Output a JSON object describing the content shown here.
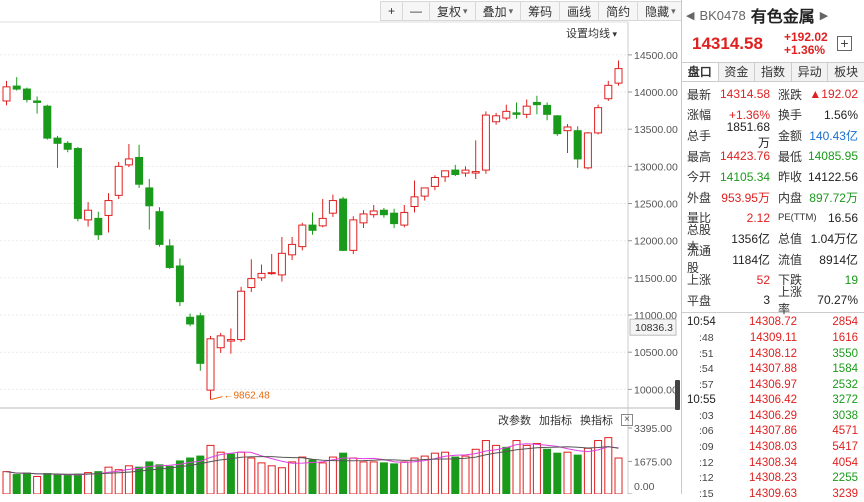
{
  "toolbar": {
    "plus": "+",
    "minus": "—",
    "fuquan": "复权",
    "diejia": "叠加",
    "chouma": "筹码",
    "huaxian": "画线",
    "jianyue": "简约",
    "yincang": "隐藏",
    "more": "⏩"
  },
  "ma_setting": "设置均线",
  "indicator": {
    "change_params": "改参数",
    "add_indicator": "加指标",
    "switch_indicator": "换指标",
    "close": "×"
  },
  "chart_data": {
    "type": "candlestick",
    "y_axis_ticks": [
      14500,
      14000,
      13500,
      13000,
      12500,
      12000,
      11500,
      11000,
      10500,
      10000
    ],
    "y_axis_labels": [
      "14500.00",
      "14000.00",
      "13500.00",
      "13000.00",
      "12500.00",
      "12000.00",
      "11500.00",
      "11000.00",
      "10500.00",
      "10000.00"
    ],
    "ylim": [
      9830,
      14700
    ],
    "cursor_price": "10836.3",
    "low_annotation": "9862.48",
    "candles": [
      {
        "o": 13880,
        "h": 14150,
        "l": 13820,
        "c": 14070
      },
      {
        "o": 14080,
        "h": 14200,
        "l": 14020,
        "c": 14040
      },
      {
        "o": 14040,
        "h": 14060,
        "l": 13860,
        "c": 13900
      },
      {
        "o": 13880,
        "h": 13940,
        "l": 13710,
        "c": 13860
      },
      {
        "o": 13810,
        "h": 13830,
        "l": 13360,
        "c": 13380
      },
      {
        "o": 13380,
        "h": 13410,
        "l": 12980,
        "c": 13310
      },
      {
        "o": 13310,
        "h": 13340,
        "l": 13190,
        "c": 13230
      },
      {
        "o": 13240,
        "h": 13260,
        "l": 12260,
        "c": 12300
      },
      {
        "o": 12280,
        "h": 12520,
        "l": 12190,
        "c": 12410
      },
      {
        "o": 12300,
        "h": 12390,
        "l": 12010,
        "c": 12080
      },
      {
        "o": 12340,
        "h": 12640,
        "l": 12110,
        "c": 12540
      },
      {
        "o": 12610,
        "h": 13060,
        "l": 12560,
        "c": 13000
      },
      {
        "o": 13020,
        "h": 13300,
        "l": 12990,
        "c": 13100
      },
      {
        "o": 13120,
        "h": 13290,
        "l": 12710,
        "c": 12760
      },
      {
        "o": 12710,
        "h": 12830,
        "l": 12150,
        "c": 12470
      },
      {
        "o": 12390,
        "h": 12450,
        "l": 11920,
        "c": 11950
      },
      {
        "o": 11930,
        "h": 12020,
        "l": 11620,
        "c": 11640
      },
      {
        "o": 11660,
        "h": 11760,
        "l": 11120,
        "c": 11180
      },
      {
        "o": 10970,
        "h": 11020,
        "l": 10850,
        "c": 10880
      },
      {
        "o": 10990,
        "h": 11030,
        "l": 10250,
        "c": 10350
      },
      {
        "o": 9990,
        "h": 10720,
        "l": 9862,
        "c": 10680
      },
      {
        "o": 10560,
        "h": 10760,
        "l": 10490,
        "c": 10720
      },
      {
        "o": 10650,
        "h": 10820,
        "l": 10480,
        "c": 10670
      },
      {
        "o": 10670,
        "h": 11380,
        "l": 10640,
        "c": 11320
      },
      {
        "o": 11370,
        "h": 11750,
        "l": 11310,
        "c": 11490
      },
      {
        "o": 11500,
        "h": 11680,
        "l": 11460,
        "c": 11560
      },
      {
        "o": 11560,
        "h": 11820,
        "l": 11540,
        "c": 11570
      },
      {
        "o": 11540,
        "h": 12050,
        "l": 11450,
        "c": 11830
      },
      {
        "o": 11810,
        "h": 12050,
        "l": 11740,
        "c": 11950
      },
      {
        "o": 11920,
        "h": 12240,
        "l": 11870,
        "c": 12210
      },
      {
        "o": 12210,
        "h": 12380,
        "l": 12080,
        "c": 12140
      },
      {
        "o": 12200,
        "h": 12560,
        "l": 12180,
        "c": 12300
      },
      {
        "o": 12370,
        "h": 12620,
        "l": 12320,
        "c": 12540
      },
      {
        "o": 12560,
        "h": 12590,
        "l": 11860,
        "c": 11870
      },
      {
        "o": 11870,
        "h": 12330,
        "l": 11820,
        "c": 12280
      },
      {
        "o": 12240,
        "h": 12410,
        "l": 12170,
        "c": 12360
      },
      {
        "o": 12350,
        "h": 12480,
        "l": 12310,
        "c": 12400
      },
      {
        "o": 12410,
        "h": 12440,
        "l": 12310,
        "c": 12350
      },
      {
        "o": 12370,
        "h": 12430,
        "l": 12170,
        "c": 12230
      },
      {
        "o": 12210,
        "h": 12480,
        "l": 12180,
        "c": 12380
      },
      {
        "o": 12460,
        "h": 12810,
        "l": 12380,
        "c": 12590
      },
      {
        "o": 12600,
        "h": 12710,
        "l": 12540,
        "c": 12710
      },
      {
        "o": 12730,
        "h": 12880,
        "l": 12680,
        "c": 12850
      },
      {
        "o": 12860,
        "h": 12940,
        "l": 12790,
        "c": 12940
      },
      {
        "o": 12950,
        "h": 13020,
        "l": 12870,
        "c": 12890
      },
      {
        "o": 12910,
        "h": 13000,
        "l": 12860,
        "c": 12950
      },
      {
        "o": 12910,
        "h": 13350,
        "l": 12830,
        "c": 12930
      },
      {
        "o": 12950,
        "h": 13740,
        "l": 12900,
        "c": 13690
      },
      {
        "o": 13600,
        "h": 13720,
        "l": 13560,
        "c": 13680
      },
      {
        "o": 13650,
        "h": 13830,
        "l": 13620,
        "c": 13740
      },
      {
        "o": 13720,
        "h": 13860,
        "l": 13640,
        "c": 13700
      },
      {
        "o": 13700,
        "h": 13900,
        "l": 13650,
        "c": 13810
      },
      {
        "o": 13860,
        "h": 13950,
        "l": 13700,
        "c": 13830
      },
      {
        "o": 13820,
        "h": 13860,
        "l": 13620,
        "c": 13700
      },
      {
        "o": 13680,
        "h": 13690,
        "l": 13410,
        "c": 13440
      },
      {
        "o": 13480,
        "h": 13570,
        "l": 13180,
        "c": 13530
      },
      {
        "o": 13480,
        "h": 13540,
        "l": 12980,
        "c": 13100
      },
      {
        "o": 12980,
        "h": 13460,
        "l": 12960,
        "c": 13450
      },
      {
        "o": 13450,
        "h": 13830,
        "l": 13430,
        "c": 13790
      },
      {
        "o": 13910,
        "h": 14150,
        "l": 13880,
        "c": 14090
      },
      {
        "o": 14120,
        "h": 14424,
        "l": 14086,
        "c": 14315
      }
    ],
    "volume_axis_labels": [
      "3395.00",
      "1675.00",
      "0.00"
    ],
    "volume_ymax": 3395,
    "volumes": [
      {
        "v": 1150,
        "up": true
      },
      {
        "v": 1000,
        "up": false
      },
      {
        "v": 1080,
        "up": false
      },
      {
        "v": 900,
        "up": true
      },
      {
        "v": 1050,
        "up": false
      },
      {
        "v": 1000,
        "up": false
      },
      {
        "v": 950,
        "up": false
      },
      {
        "v": 1020,
        "up": false
      },
      {
        "v": 1100,
        "up": true
      },
      {
        "v": 1150,
        "up": false
      },
      {
        "v": 1380,
        "up": true
      },
      {
        "v": 1250,
        "up": true
      },
      {
        "v": 1450,
        "up": true
      },
      {
        "v": 1380,
        "up": false
      },
      {
        "v": 1650,
        "up": false
      },
      {
        "v": 1500,
        "up": false
      },
      {
        "v": 1420,
        "up": false
      },
      {
        "v": 1700,
        "up": false
      },
      {
        "v": 1850,
        "up": false
      },
      {
        "v": 1950,
        "up": false
      },
      {
        "v": 2500,
        "up": true
      },
      {
        "v": 2150,
        "up": true
      },
      {
        "v": 2050,
        "up": false
      },
      {
        "v": 2150,
        "up": true
      },
      {
        "v": 1850,
        "up": true
      },
      {
        "v": 1600,
        "up": true
      },
      {
        "v": 1450,
        "up": true
      },
      {
        "v": 1350,
        "up": true
      },
      {
        "v": 1650,
        "up": true
      },
      {
        "v": 1900,
        "up": true
      },
      {
        "v": 1750,
        "up": false
      },
      {
        "v": 1600,
        "up": true
      },
      {
        "v": 1900,
        "up": true
      },
      {
        "v": 2100,
        "up": false
      },
      {
        "v": 1850,
        "up": true
      },
      {
        "v": 1650,
        "up": true
      },
      {
        "v": 1650,
        "up": true
      },
      {
        "v": 1600,
        "up": false
      },
      {
        "v": 1550,
        "up": false
      },
      {
        "v": 1650,
        "up": true
      },
      {
        "v": 1850,
        "up": true
      },
      {
        "v": 1950,
        "up": true
      },
      {
        "v": 2100,
        "up": true
      },
      {
        "v": 2150,
        "up": true
      },
      {
        "v": 1900,
        "up": false
      },
      {
        "v": 1950,
        "up": true
      },
      {
        "v": 2300,
        "up": true
      },
      {
        "v": 2750,
        "up": true
      },
      {
        "v": 2500,
        "up": true
      },
      {
        "v": 2400,
        "up": false
      },
      {
        "v": 2750,
        "up": true
      },
      {
        "v": 2500,
        "up": true
      },
      {
        "v": 2600,
        "up": true
      },
      {
        "v": 2300,
        "up": false
      },
      {
        "v": 2100,
        "up": false
      },
      {
        "v": 2150,
        "up": true
      },
      {
        "v": 2000,
        "up": false
      },
      {
        "v": 2350,
        "up": true
      },
      {
        "v": 2750,
        "up": true
      },
      {
        "v": 2900,
        "up": true
      },
      {
        "v": 1850,
        "up": true
      }
    ],
    "colors": {
      "up": "#e02020",
      "down": "#1a9a1a",
      "ma1": "#e040e0",
      "ma2": "#555555",
      "annotation": "#e86a10"
    }
  },
  "sidebar": {
    "code": "BK0478",
    "name": "有色金属",
    "price": "14314.58",
    "change": "+192.02",
    "change_pct": "+1.36%",
    "add_btn": "+",
    "tabs": [
      "盘口",
      "资金",
      "指数",
      "异动",
      "板块"
    ],
    "stats": [
      {
        "l1": "最新",
        "v1": "14314.58",
        "c1": "red",
        "l2": "涨跌",
        "v2": "▲192.02",
        "c2": "red"
      },
      {
        "l1": "涨幅",
        "v1": "+1.36%",
        "c1": "red",
        "l2": "换手",
        "v2": "1.56%",
        "c2": "blk"
      },
      {
        "l1": "总手",
        "v1": "1851.68万",
        "c1": "blk",
        "l2": "金额",
        "v2": "140.43亿",
        "c2": "blu"
      },
      {
        "l1": "最高",
        "v1": "14423.76",
        "c1": "red",
        "l2": "最低",
        "v2": "14085.95",
        "c2": "grn"
      },
      {
        "l1": "今开",
        "v1": "14105.34",
        "c1": "grn",
        "l2": "昨收",
        "v2": "14122.56",
        "c2": "blk"
      },
      {
        "l1": "外盘",
        "v1": "953.95万",
        "c1": "red",
        "l2": "内盘",
        "v2": "897.72万",
        "c2": "grn"
      },
      {
        "l1": "量比",
        "v1": "2.12",
        "c1": "red",
        "l2": "PE(TTM)",
        "v2": "16.56",
        "c2": "blk"
      },
      {
        "l1": "总股本",
        "v1": "1356亿",
        "c1": "blk",
        "l2": "总值",
        "v2": "1.04万亿",
        "c2": "blk"
      },
      {
        "l1": "流通股",
        "v1": "1184亿",
        "c1": "blk",
        "l2": "流值",
        "v2": "8914亿",
        "c2": "blk"
      },
      {
        "l1": "上涨",
        "v1": "52",
        "c1": "red",
        "l2": "下跌",
        "v2": "19",
        "c2": "grn"
      },
      {
        "l1": "平盘",
        "v1": "3",
        "c1": "blk",
        "l2": "上涨率",
        "v2": "70.27%",
        "c2": "blk"
      }
    ],
    "ticks": [
      {
        "t": "10:54",
        "sub": false,
        "p": "14308.72",
        "q": "2854",
        "c": "red"
      },
      {
        "t": ":48",
        "sub": true,
        "p": "14309.11",
        "q": "1616",
        "c": "red"
      },
      {
        "t": ":51",
        "sub": true,
        "p": "14308.12",
        "q": "3550",
        "c": "grn"
      },
      {
        "t": ":54",
        "sub": true,
        "p": "14307.88",
        "q": "1584",
        "c": "grn"
      },
      {
        "t": ":57",
        "sub": true,
        "p": "14306.97",
        "q": "2532",
        "c": "grn"
      },
      {
        "t": "10:55",
        "sub": false,
        "p": "14306.42",
        "q": "3272",
        "c": "grn"
      },
      {
        "t": ":03",
        "sub": true,
        "p": "14306.29",
        "q": "3038",
        "c": "grn"
      },
      {
        "t": ":06",
        "sub": true,
        "p": "14307.86",
        "q": "4571",
        "c": "red"
      },
      {
        "t": ":09",
        "sub": true,
        "p": "14308.03",
        "q": "5417",
        "c": "red"
      },
      {
        "t": ":12",
        "sub": true,
        "p": "14308.34",
        "q": "4054",
        "c": "red"
      },
      {
        "t": ":12",
        "sub": true,
        "p": "14308.23",
        "q": "2255",
        "c": "grn"
      },
      {
        "t": ":15",
        "sub": true,
        "p": "14309.63",
        "q": "3239",
        "c": "red"
      }
    ]
  }
}
